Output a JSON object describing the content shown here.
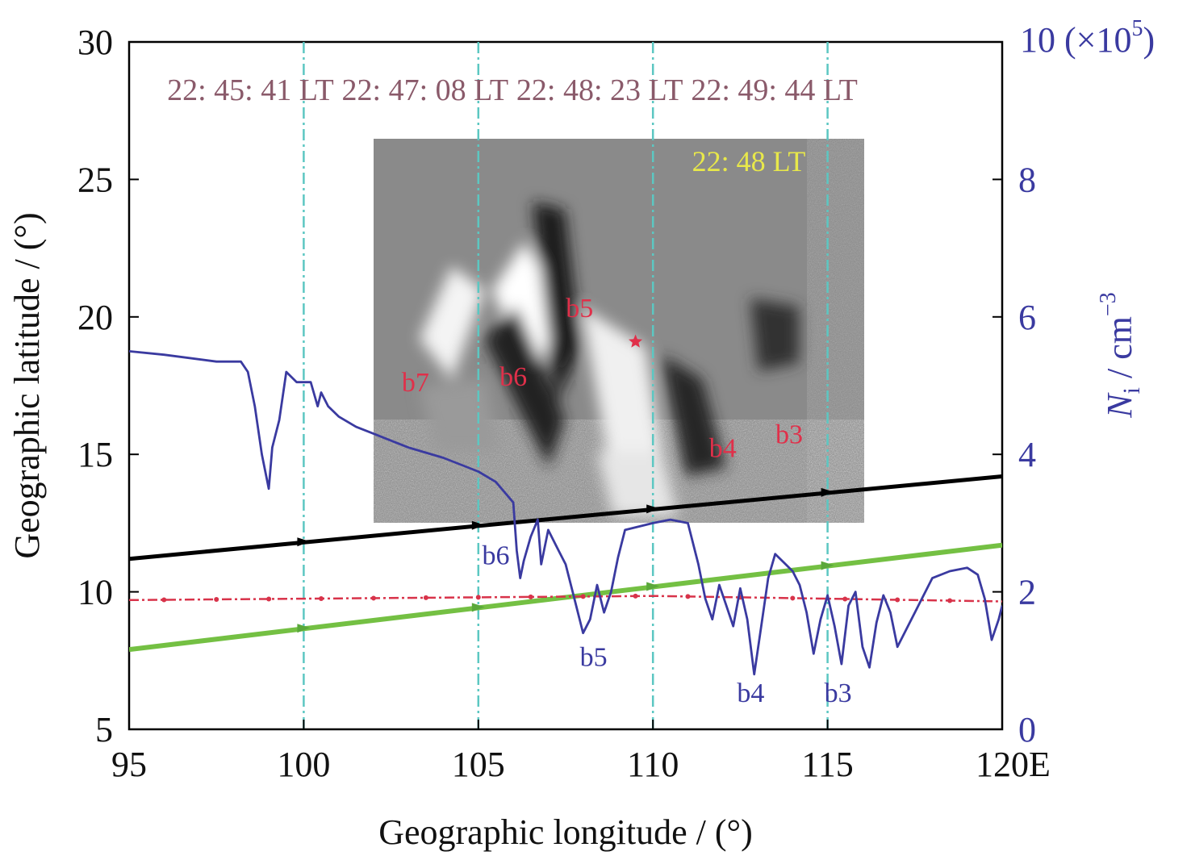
{
  "chart_data": {
    "type": "line",
    "xlabel": "Geographic longitude / (°)",
    "x_unit_suffix": "E",
    "ylabel_left": "Geographic latitude / (°)",
    "ylabel_right_main": "N",
    "ylabel_right_sub": "i",
    "ylabel_right_unit": " / cm",
    "ylabel_right_exp": "−3",
    "xlim": [
      95,
      120
    ],
    "ylim_left": [
      5,
      30
    ],
    "ylim_right": [
      0,
      10
    ],
    "x_ticks": [
      "95",
      "100",
      "105",
      "110",
      "115",
      "120"
    ],
    "y_ticks_left": [
      "5",
      "10",
      "15",
      "20",
      "25",
      "30"
    ],
    "y_ticks_right": [
      "0",
      "2",
      "4",
      "6",
      "8"
    ],
    "y_right_top_label": "10 (×10",
    "y_right_top_exp": "5",
    "y_right_top_close": ")",
    "vlines": [
      {
        "x": 100,
        "time": "22: 45: 41 LT"
      },
      {
        "x": 105,
        "time": "22: 47: 08 LT"
      },
      {
        "x": 110,
        "time": "22: 48: 23 LT"
      },
      {
        "x": 115,
        "time": "22: 49: 44 LT"
      }
    ],
    "inset": {
      "lon": [
        102,
        116
      ],
      "lat": [
        12.5,
        26.5
      ],
      "time_label": "22: 48 LT",
      "bubble_labels": [
        {
          "text": "b7",
          "lon": 103.2,
          "lat": 17.3
        },
        {
          "text": "b6",
          "lon": 106.0,
          "lat": 17.5
        },
        {
          "text": "b5",
          "lon": 107.9,
          "lat": 20.0
        },
        {
          "text": "b4",
          "lon": 112.0,
          "lat": 14.9
        },
        {
          "text": "b3",
          "lon": 113.9,
          "lat": 15.4
        }
      ],
      "star": {
        "lon": 109.5,
        "lat": 19.1
      }
    },
    "series": [
      {
        "role": "left-axis track (black)",
        "color": "#000000",
        "x": [
          95,
          120
        ],
        "y": [
          11.2,
          14.2
        ]
      },
      {
        "role": "left-axis track (green)",
        "color": "#74c043",
        "x": [
          95,
          120
        ],
        "y": [
          7.9,
          11.7
        ]
      },
      {
        "role": "left-axis dash-dot (red)",
        "color": "#d8334a",
        "x": [
          95,
          110,
          120
        ],
        "y": [
          9.7,
          9.85,
          9.65
        ]
      },
      {
        "role": "right-axis ion density",
        "color": "#3a3aa0",
        "x": [
          95,
          96,
          97.5,
          98.2,
          98.4,
          98.6,
          98.8,
          99.0,
          99.1,
          99.3,
          99.5,
          99.8,
          100.2,
          100.4,
          100.5,
          100.7,
          101.0,
          101.5,
          102.0,
          102.5,
          103.0,
          104.0,
          104.5,
          105.0,
          105.5,
          106.0,
          106.1,
          106.2,
          106.3,
          106.5,
          106.7,
          106.8,
          107.0,
          107.2,
          107.3,
          107.5,
          107.8,
          108.0,
          108.2,
          108.4,
          108.6,
          108.8,
          109.0,
          109.2,
          110.0,
          110.5,
          111.0,
          111.3,
          111.5,
          111.7,
          111.9,
          112.1,
          112.3,
          112.5,
          112.7,
          112.9,
          113.1,
          113.3,
          113.5,
          113.8,
          114.0,
          114.2,
          114.4,
          114.6,
          114.8,
          115.0,
          115.2,
          115.4,
          115.6,
          115.8,
          116.0,
          116.2,
          116.4,
          116.6,
          116.8,
          117.0,
          117.5,
          118.0,
          118.5,
          119.0,
          119.3,
          119.5,
          119.7,
          119.9,
          120.0
        ],
        "y": [
          5.5,
          5.45,
          5.35,
          5.35,
          5.2,
          4.7,
          4.0,
          3.5,
          4.1,
          4.5,
          5.2,
          5.05,
          5.05,
          4.7,
          4.9,
          4.7,
          4.55,
          4.4,
          4.3,
          4.2,
          4.1,
          3.95,
          3.85,
          3.75,
          3.6,
          3.3,
          2.6,
          2.2,
          2.45,
          2.8,
          3.05,
          2.4,
          2.9,
          2.7,
          2.6,
          2.4,
          1.8,
          1.4,
          1.6,
          2.1,
          1.7,
          2.0,
          2.5,
          2.9,
          3.0,
          3.05,
          3.0,
          2.4,
          1.9,
          1.6,
          2.1,
          1.8,
          1.5,
          2.05,
          1.6,
          0.8,
          1.5,
          2.2,
          2.55,
          2.4,
          2.3,
          2.1,
          1.7,
          1.1,
          1.6,
          1.95,
          1.5,
          0.95,
          1.8,
          2.0,
          1.2,
          0.9,
          1.55,
          1.95,
          1.7,
          1.2,
          1.7,
          2.2,
          2.3,
          2.35,
          2.25,
          1.9,
          1.3,
          1.6,
          1.8
        ]
      }
    ],
    "blue_labels": [
      {
        "text": "b6",
        "lon": 105.5,
        "lat": 11.0
      },
      {
        "text": "b5",
        "lon": 108.3,
        "lat": 7.3
      },
      {
        "text": "b4",
        "lon": 112.8,
        "lat": 6.0
      },
      {
        "text": "b3",
        "lon": 115.3,
        "lat": 6.0
      }
    ]
  }
}
